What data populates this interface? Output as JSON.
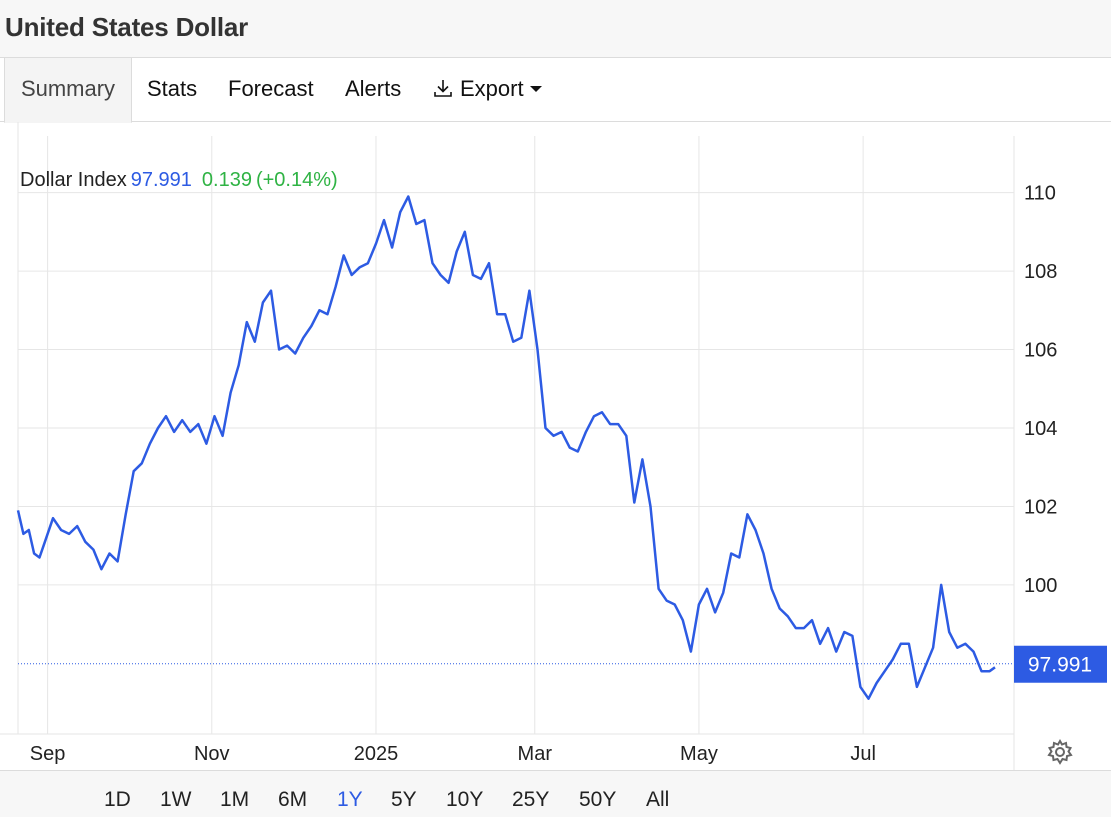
{
  "header": {
    "title": "United States Dollar"
  },
  "tabs": [
    {
      "label": "Summary",
      "active": true
    },
    {
      "label": "Stats"
    },
    {
      "label": "Forecast"
    },
    {
      "label": "Alerts"
    },
    {
      "label": "Export",
      "icon": "download-icon"
    }
  ],
  "legend": {
    "label": "Dollar Index",
    "value": "97.991",
    "change": "0.139",
    "change_pct": "(+0.14%)"
  },
  "ranges": [
    {
      "label": "1D"
    },
    {
      "label": "1W"
    },
    {
      "label": "1M"
    },
    {
      "label": "6M"
    },
    {
      "label": "1Y",
      "active": true
    },
    {
      "label": "5Y"
    },
    {
      "label": "10Y"
    },
    {
      "label": "25Y"
    },
    {
      "label": "50Y"
    },
    {
      "label": "All"
    }
  ],
  "settings_icon": "gear-icon",
  "colors": {
    "line": "#2d5be3",
    "positive": "#2fb344",
    "price_tag": "#2d5be3",
    "grid": "#e6e6e6"
  },
  "chart_data": {
    "type": "line",
    "title": "",
    "xlabel": "",
    "ylabel": "",
    "grid": true,
    "ylim": [
      96.2,
      111.8
    ],
    "y_ticks": [
      110,
      108,
      106,
      104,
      102,
      100
    ],
    "x_ticks": [
      {
        "label": "Sep",
        "date": "2024-09-01"
      },
      {
        "label": "Nov",
        "date": "2024-11-01"
      },
      {
        "label": "2025",
        "date": "2025-01-01"
      },
      {
        "label": "Mar",
        "date": "2025-03-01"
      },
      {
        "label": "May",
        "date": "2025-05-01"
      },
      {
        "label": "Jul",
        "date": "2025-07-01"
      }
    ],
    "current_value": 97.991,
    "series": [
      {
        "x": [
          "2024-08-21",
          "2024-08-23",
          "2024-08-25",
          "2024-08-27",
          "2024-08-29",
          "2024-08-31",
          "2024-09-03",
          "2024-09-06",
          "2024-09-09",
          "2024-09-12",
          "2024-09-15",
          "2024-09-18",
          "2024-09-21",
          "2024-09-24",
          "2024-09-27",
          "2024-09-30",
          "2024-10-03",
          "2024-10-06",
          "2024-10-09",
          "2024-10-12",
          "2024-10-15",
          "2024-10-18",
          "2024-10-21",
          "2024-10-24",
          "2024-10-27",
          "2024-10-30",
          "2024-11-02",
          "2024-11-05",
          "2024-11-08",
          "2024-11-11",
          "2024-11-14",
          "2024-11-17",
          "2024-11-20",
          "2024-11-23",
          "2024-11-26",
          "2024-11-29",
          "2024-12-02",
          "2024-12-05",
          "2024-12-08",
          "2024-12-11",
          "2024-12-14",
          "2024-12-17",
          "2024-12-20",
          "2024-12-23",
          "2024-12-26",
          "2024-12-29",
          "2025-01-01",
          "2025-01-04",
          "2025-01-07",
          "2025-01-10",
          "2025-01-13",
          "2025-01-16",
          "2025-01-19",
          "2025-01-22",
          "2025-01-25",
          "2025-01-28",
          "2025-01-31",
          "2025-02-03",
          "2025-02-06",
          "2025-02-09",
          "2025-02-12",
          "2025-02-15",
          "2025-02-18",
          "2025-02-21",
          "2025-02-24",
          "2025-02-27",
          "2025-03-02",
          "2025-03-05",
          "2025-03-08",
          "2025-03-11",
          "2025-03-14",
          "2025-03-17",
          "2025-03-20",
          "2025-03-23",
          "2025-03-26",
          "2025-03-29",
          "2025-04-01",
          "2025-04-04",
          "2025-04-07",
          "2025-04-10",
          "2025-04-13",
          "2025-04-16",
          "2025-04-19",
          "2025-04-22",
          "2025-04-25",
          "2025-04-28",
          "2025-05-01",
          "2025-05-04",
          "2025-05-07",
          "2025-05-10",
          "2025-05-13",
          "2025-05-16",
          "2025-05-19",
          "2025-05-22",
          "2025-05-25",
          "2025-05-28",
          "2025-05-31",
          "2025-06-03",
          "2025-06-06",
          "2025-06-09",
          "2025-06-12",
          "2025-06-15",
          "2025-06-18",
          "2025-06-21",
          "2025-06-24",
          "2025-06-27",
          "2025-06-30",
          "2025-07-03",
          "2025-07-06",
          "2025-07-09",
          "2025-07-12",
          "2025-07-15",
          "2025-07-18",
          "2025-07-21",
          "2025-07-24",
          "2025-07-27",
          "2025-07-30",
          "2025-08-02",
          "2025-08-05",
          "2025-08-08",
          "2025-08-11",
          "2025-08-14",
          "2025-08-17",
          "2025-08-19"
        ],
        "y": [
          101.9,
          101.3,
          101.4,
          100.8,
          100.7,
          101.1,
          101.7,
          101.4,
          101.3,
          101.5,
          101.1,
          100.9,
          100.4,
          100.8,
          100.6,
          101.8,
          102.9,
          103.1,
          103.6,
          104.0,
          104.3,
          103.9,
          104.2,
          103.9,
          104.1,
          103.6,
          104.3,
          103.8,
          104.9,
          105.6,
          106.7,
          106.2,
          107.2,
          107.5,
          106.0,
          106.1,
          105.9,
          106.3,
          106.6,
          107.0,
          106.9,
          107.6,
          108.4,
          107.9,
          108.1,
          108.2,
          108.7,
          109.3,
          108.6,
          109.5,
          109.9,
          109.2,
          109.3,
          108.2,
          107.9,
          107.7,
          108.5,
          109.0,
          107.9,
          107.8,
          108.2,
          106.9,
          106.9,
          106.2,
          106.3,
          107.5,
          106.0,
          104.0,
          103.8,
          103.9,
          103.5,
          103.4,
          103.9,
          104.3,
          104.4,
          104.1,
          104.1,
          103.8,
          102.1,
          103.2,
          102.0,
          99.9,
          99.6,
          99.5,
          99.1,
          98.3,
          99.5,
          99.9,
          99.3,
          99.8,
          100.8,
          100.7,
          101.8,
          101.4,
          100.8,
          99.9,
          99.4,
          99.2,
          98.9,
          98.9,
          99.1,
          98.5,
          98.9,
          98.3,
          98.8,
          98.7,
          97.4,
          97.1,
          97.5,
          97.8,
          98.1,
          98.5,
          98.5,
          97.4,
          97.9,
          98.4,
          100.0,
          98.8,
          98.4,
          98.5,
          98.3,
          97.8,
          97.8,
          97.9
        ]
      }
    ]
  }
}
